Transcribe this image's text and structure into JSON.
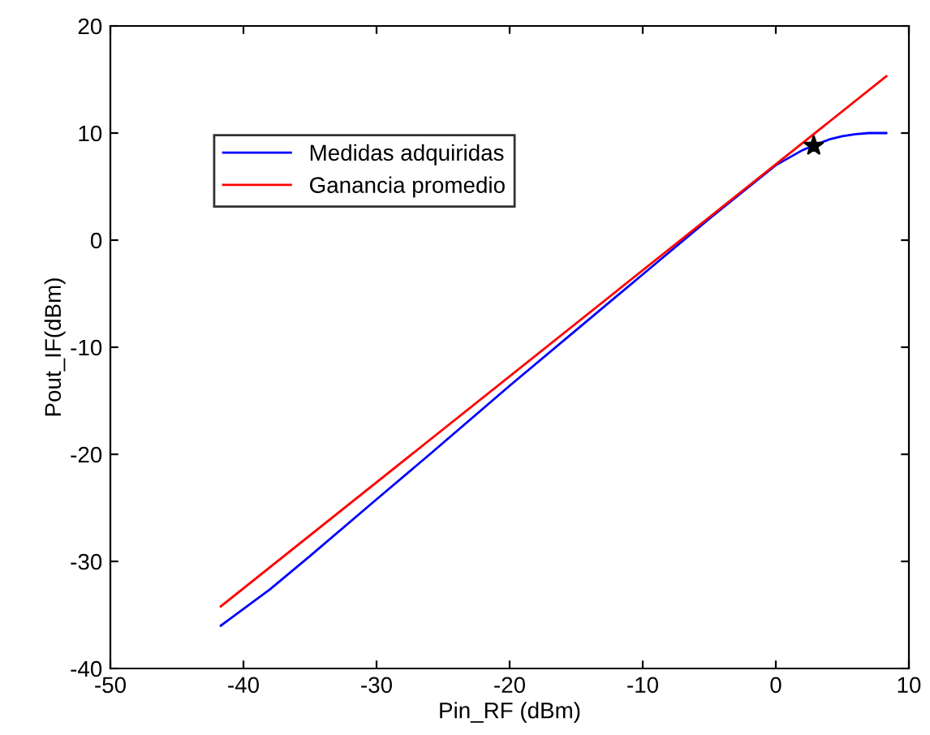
{
  "chart_data": {
    "type": "line",
    "xlabel": "Pin_RF (dBm)",
    "ylabel": "Pout_IF(dBm)",
    "xlim": [
      -50,
      10
    ],
    "ylim": [
      -40,
      20
    ],
    "xticks": [
      -50,
      -40,
      -30,
      -20,
      -10,
      0,
      10
    ],
    "yticks": [
      -40,
      -30,
      -20,
      -10,
      0,
      10,
      20
    ],
    "grid": false,
    "legend": "top left",
    "series": [
      {
        "name": "Medidas adquiridas",
        "color": "#0000ff",
        "x": [
          -41.7,
          -38,
          -35,
          -30,
          -26,
          -20,
          -15,
          -10,
          -5,
          0,
          2,
          3,
          4,
          5,
          6,
          7,
          8.3
        ],
        "values": [
          -36.0,
          -32.6,
          -29.5,
          -24.2,
          -20.0,
          -13.6,
          -8.4,
          -3.2,
          2.0,
          7.0,
          8.4,
          8.9,
          9.4,
          9.7,
          9.9,
          10.0,
          10.0
        ]
      },
      {
        "name": "Ganancia promedio",
        "color": "#ff0000",
        "x": [
          -41.7,
          8.3
        ],
        "values": [
          -34.2,
          15.3
        ]
      },
      {
        "type": "scatter",
        "color": "#000000",
        "marker": "star",
        "x": [
          2.85
        ],
        "values": [
          8.8
        ]
      }
    ]
  }
}
